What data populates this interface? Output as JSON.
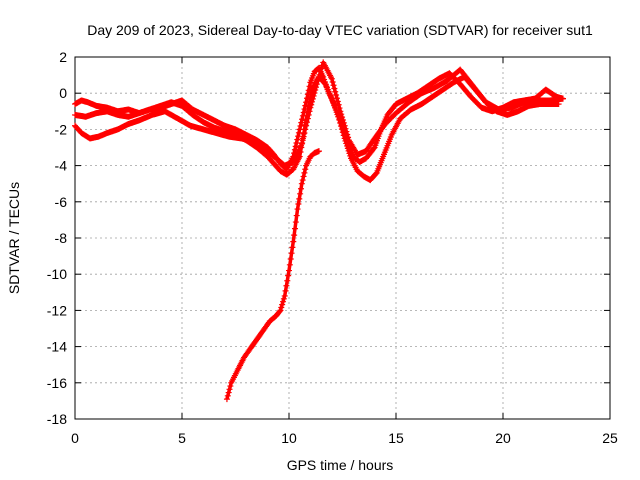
{
  "chart_data": {
    "type": "scatter",
    "title": "Day 209 of 2023, Sidereal Day-to-day VTEC variation (SDTVAR) for receiver sut1",
    "xlabel": "GPS time / hours",
    "ylabel": "SDTVAR / TECUs",
    "xlim": [
      0,
      25
    ],
    "ylim": [
      -18,
      2
    ],
    "xticks": [
      0,
      5,
      10,
      15,
      20,
      25
    ],
    "yticks": [
      -18,
      -16,
      -14,
      -12,
      -10,
      -8,
      -6,
      -4,
      -2,
      0,
      2
    ],
    "grid": true,
    "marker": "+",
    "color": "#ff0000",
    "series": [
      {
        "name": "trace-1",
        "x": [
          0.0,
          0.3,
          0.6,
          1.0,
          1.5,
          2.0,
          2.5,
          3.0,
          3.5,
          4.0,
          4.5,
          5.0,
          5.5,
          6.0,
          6.5,
          7.0,
          7.5,
          8.0,
          8.5,
          9.0,
          9.3,
          9.6,
          9.9,
          10.2,
          10.5,
          10.8,
          11.0,
          11.2,
          11.4,
          11.6,
          11.8,
          12.1,
          12.4,
          12.7,
          13.0,
          13.3,
          13.6,
          14.0,
          14.3,
          14.6,
          15.0,
          15.5,
          16.0,
          16.5,
          17.0,
          17.5,
          18.0,
          18.5,
          19.0,
          19.5,
          20.0,
          20.5,
          21.0,
          21.5,
          22.0,
          22.5,
          22.8
        ],
        "y": [
          -0.6,
          -0.4,
          -0.5,
          -0.7,
          -0.8,
          -1.0,
          -0.9,
          -1.1,
          -0.9,
          -0.8,
          -0.6,
          -0.4,
          -0.9,
          -1.2,
          -1.5,
          -1.8,
          -2.0,
          -2.3,
          -2.6,
          -3.0,
          -3.4,
          -3.9,
          -4.2,
          -3.5,
          -2.0,
          -0.5,
          0.6,
          1.2,
          1.4,
          0.9,
          0.2,
          -0.6,
          -1.5,
          -2.6,
          -3.5,
          -3.8,
          -3.6,
          -3.0,
          -2.0,
          -1.2,
          -0.6,
          -0.3,
          0.0,
          0.4,
          0.8,
          1.1,
          0.5,
          -0.2,
          -0.8,
          -1.0,
          -0.8,
          -0.5,
          -0.4,
          -0.3,
          0.2,
          -0.2,
          -0.3
        ]
      },
      {
        "name": "trace-2",
        "x": [
          0.0,
          0.5,
          1.0,
          1.5,
          2.0,
          2.5,
          3.0,
          3.5,
          4.0,
          4.5,
          5.0,
          5.5,
          6.0,
          6.5,
          7.0,
          7.5,
          8.0,
          8.5,
          9.0,
          9.3,
          9.6,
          9.9,
          10.2,
          10.5,
          10.8,
          11.1,
          11.4,
          11.7,
          12.0,
          12.3,
          12.6,
          12.9,
          13.2,
          13.5,
          13.8,
          14.1,
          14.4,
          14.8,
          15.2,
          15.7,
          16.2,
          16.7,
          17.2,
          17.7,
          18.2,
          18.7,
          19.2,
          19.7,
          20.2,
          20.7,
          21.2,
          21.7,
          22.2,
          22.6
        ],
        "y": [
          -1.2,
          -1.3,
          -1.1,
          -1.0,
          -1.2,
          -1.3,
          -1.1,
          -0.9,
          -0.7,
          -0.5,
          -0.7,
          -1.2,
          -1.6,
          -1.9,
          -2.1,
          -2.3,
          -2.6,
          -3.0,
          -3.5,
          -3.9,
          -4.3,
          -4.5,
          -4.2,
          -3.5,
          -1.5,
          0.3,
          0.9,
          0.5,
          -0.3,
          -1.3,
          -2.5,
          -3.6,
          -4.3,
          -4.6,
          -4.8,
          -4.4,
          -3.5,
          -2.3,
          -1.4,
          -0.9,
          -0.6,
          -0.2,
          0.2,
          0.6,
          0.9,
          0.2,
          -0.5,
          -1.0,
          -1.2,
          -1.0,
          -0.7,
          -0.6,
          -0.6,
          -0.6
        ]
      },
      {
        "name": "trace-3",
        "x": [
          0.0,
          0.3,
          0.7,
          1.1,
          1.5,
          2.0,
          2.5,
          3.0,
          3.6,
          4.2,
          4.8,
          5.4,
          6.0,
          6.6,
          7.2,
          7.8,
          8.4,
          9.0,
          9.4,
          9.8,
          10.2,
          10.6,
          11.0,
          11.3,
          11.6,
          12.0,
          12.4,
          12.8,
          13.2,
          13.6,
          14.0,
          14.5,
          15.0,
          15.6,
          16.2,
          16.8,
          17.4,
          18.0,
          18.6,
          19.2,
          19.8,
          20.4,
          21.0,
          21.6,
          22.2,
          22.8
        ],
        "y": [
          -1.8,
          -2.2,
          -2.5,
          -2.4,
          -2.2,
          -2.0,
          -1.7,
          -1.5,
          -1.2,
          -1.0,
          -1.4,
          -1.8,
          -2.0,
          -2.2,
          -2.4,
          -2.5,
          -2.7,
          -3.2,
          -3.6,
          -4.0,
          -3.8,
          -2.8,
          -0.8,
          0.5,
          1.7,
          0.8,
          -1.0,
          -2.6,
          -3.4,
          -3.2,
          -2.5,
          -1.7,
          -1.1,
          -0.5,
          0.0,
          0.3,
          0.7,
          1.3,
          0.4,
          -0.5,
          -0.9,
          -0.8,
          -0.5,
          -0.4,
          -0.4,
          -0.3
        ]
      },
      {
        "name": "trace-4",
        "x": [
          7.1,
          7.3,
          7.6,
          7.9,
          8.2,
          8.5,
          8.8,
          9.1,
          9.4,
          9.6,
          9.8,
          10.0,
          10.2,
          10.4,
          10.6,
          10.8,
          11.0,
          11.2,
          11.4
        ],
        "y": [
          -16.9,
          -16.0,
          -15.3,
          -14.6,
          -14.1,
          -13.6,
          -13.1,
          -12.6,
          -12.3,
          -12.0,
          -11.2,
          -9.8,
          -8.2,
          -6.4,
          -5.0,
          -4.0,
          -3.5,
          -3.3,
          -3.2
        ]
      }
    ]
  }
}
